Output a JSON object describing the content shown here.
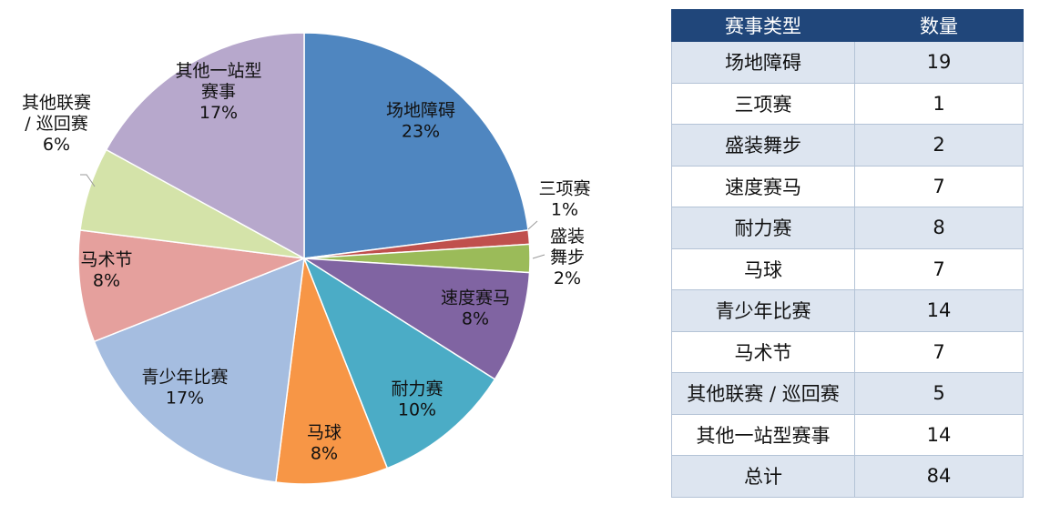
{
  "chart_data": {
    "type": "pie",
    "slices": [
      {
        "label": "场地障碍",
        "lines": [
          "场地障碍",
          "23%"
        ],
        "value": 23,
        "color": "#4f86c0"
      },
      {
        "label": "三项赛",
        "lines": [
          "三项赛",
          "1%"
        ],
        "value": 1,
        "color": "#c0504d"
      },
      {
        "label": "盛装舞步",
        "lines": [
          "盛装",
          "舞步",
          "2%"
        ],
        "value": 2,
        "color": "#9bbb59"
      },
      {
        "label": "速度赛马",
        "lines": [
          "速度赛马",
          "8%"
        ],
        "value": 8,
        "color": "#8064a2"
      },
      {
        "label": "耐力赛",
        "lines": [
          "耐力赛",
          "10%"
        ],
        "value": 10,
        "color": "#4bacc6"
      },
      {
        "label": "马球",
        "lines": [
          "马球",
          "8%"
        ],
        "value": 8,
        "color": "#f79646"
      },
      {
        "label": "青少年比赛",
        "lines": [
          "青少年比赛",
          "17%"
        ],
        "value": 17,
        "color": "#a5bde0"
      },
      {
        "label": "马术节",
        "lines": [
          "马术节",
          "8%"
        ],
        "value": 8,
        "color": "#e5a09d"
      },
      {
        "label": "其他联赛 / 巡回赛",
        "lines": [
          "其他联赛",
          "/ 巡回赛",
          "6%"
        ],
        "value": 6,
        "color": "#d4e3a9"
      },
      {
        "label": "其他一站型赛事",
        "lines": [
          "其他一站型",
          "赛事",
          "17%"
        ],
        "value": 17,
        "color": "#b7a8cc"
      }
    ]
  },
  "table": {
    "headers": [
      "赛事类型",
      "数量"
    ],
    "rows": [
      [
        "场地障碍",
        "19"
      ],
      [
        "三项赛",
        "1"
      ],
      [
        "盛装舞步",
        "2"
      ],
      [
        "速度赛马",
        "7"
      ],
      [
        "耐力赛",
        "8"
      ],
      [
        "马球",
        "7"
      ],
      [
        "青少年比赛",
        "14"
      ],
      [
        "马术节",
        "7"
      ],
      [
        "其他联赛 / 巡回赛",
        "5"
      ],
      [
        "其他一站型赛事",
        "14"
      ],
      [
        "总计",
        "84"
      ]
    ]
  }
}
